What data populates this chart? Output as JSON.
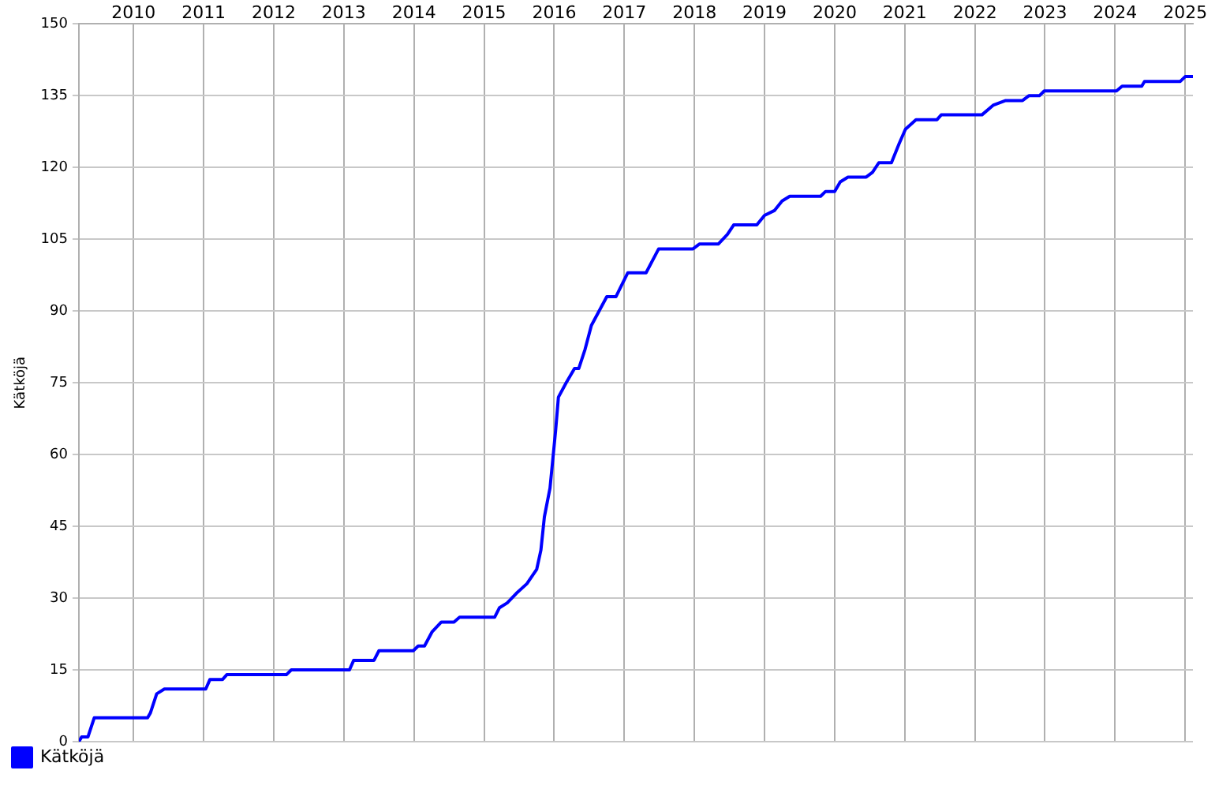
{
  "chart_data": {
    "type": "line",
    "ylabel": "Kätköjä",
    "x": [
      2009.22,
      2009.26,
      2009.35,
      2009.44,
      2010.2,
      2010.24,
      2010.33,
      2010.44,
      2011.03,
      2011.09,
      2011.27,
      2011.33,
      2012.18,
      2012.25,
      2013.08,
      2013.14,
      2013.43,
      2013.5,
      2013.99,
      2014.06,
      2014.15,
      2014.26,
      2014.39,
      2014.57,
      2014.65,
      2015.15,
      2015.22,
      2015.33,
      2015.46,
      2015.61,
      2015.75,
      2015.81,
      2015.86,
      2015.94,
      2016.02,
      2016.06,
      2016.17,
      2016.29,
      2016.35,
      2016.44,
      2016.53,
      2016.64,
      2016.75,
      2016.88,
      2017.05,
      2017.31,
      2017.49,
      2017.98,
      2018.07,
      2018.34,
      2018.47,
      2018.56,
      2018.89,
      2019.0,
      2019.14,
      2019.25,
      2019.36,
      2019.8,
      2019.87,
      2020.0,
      2020.08,
      2020.19,
      2020.45,
      2020.54,
      2020.63,
      2020.81,
      2020.92,
      2021.01,
      2021.16,
      2021.46,
      2021.52,
      2022.1,
      2022.26,
      2022.44,
      2022.68,
      2022.77,
      2022.92,
      2022.99,
      2024.02,
      2024.1,
      2024.38,
      2024.42,
      2024.93,
      2025.0,
      2025.11
    ],
    "series": [
      {
        "name": "Kätköjä",
        "color": "#0000ff",
        "values": [
          0,
          1,
          1,
          5,
          5,
          6,
          10,
          11,
          11,
          13,
          13,
          14,
          14,
          15,
          15,
          17,
          17,
          19,
          19,
          20,
          20,
          23,
          25,
          25,
          26,
          26,
          28,
          29,
          31,
          33,
          36,
          40,
          47,
          53,
          65,
          72,
          75,
          78,
          78,
          82,
          87,
          90,
          93,
          93,
          98,
          98,
          103,
          103,
          104,
          104,
          106,
          108,
          108,
          110,
          111,
          113,
          114,
          114,
          115,
          115,
          117,
          118,
          118,
          119,
          121,
          121,
          125,
          128,
          130,
          130,
          131,
          131,
          133,
          134,
          134,
          135,
          135,
          136,
          136,
          137,
          137,
          138,
          138,
          139,
          139
        ]
      }
    ],
    "xlim": [
      2009.22,
      2025.11
    ],
    "xticks": [
      2010,
      2011,
      2012,
      2013,
      2014,
      2015,
      2016,
      2017,
      2018,
      2019,
      2020,
      2021,
      2022,
      2023,
      2024,
      2025
    ],
    "ylim": [
      0,
      150
    ],
    "yticks": [
      0,
      15,
      30,
      45,
      60,
      75,
      90,
      105,
      120,
      135,
      150
    ],
    "grid": true,
    "legend": "bottom left",
    "marker": "none",
    "line_style": "solid"
  }
}
